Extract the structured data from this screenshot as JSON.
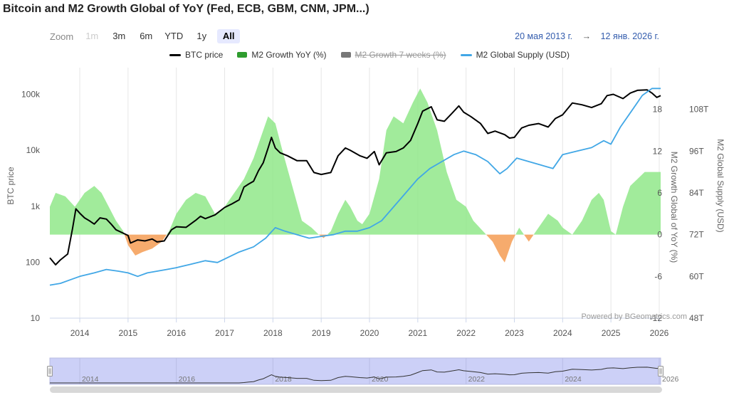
{
  "title": "Bitcoin and M2 Growth Global of YoY (Fed, ECB, GBM, CNM, JPM...)",
  "zoom": {
    "label": "Zoom",
    "buttons": [
      {
        "label": "1m",
        "state": "disabled"
      },
      {
        "label": "3m",
        "state": "normal"
      },
      {
        "label": "6m",
        "state": "normal"
      },
      {
        "label": "YTD",
        "state": "normal"
      },
      {
        "label": "1y",
        "state": "normal"
      },
      {
        "label": "All",
        "state": "active"
      }
    ]
  },
  "range": {
    "from": "20 мая 2013 г.",
    "arrow": "→",
    "to": "12 янв. 2026 г."
  },
  "legend": [
    {
      "name": "BTC price",
      "type": "line",
      "color": "#000000",
      "hidden": false
    },
    {
      "name": "M2 Growth YoY (%)",
      "type": "area",
      "color": "#2e9c2e",
      "hidden": false
    },
    {
      "name": "M2 Growth 7 weeks (%)",
      "type": "area",
      "color": "#777777",
      "hidden": true
    },
    {
      "name": "M2 Global Supply (USD)",
      "type": "line",
      "color": "#41a7e6",
      "hidden": false
    }
  ],
  "credit": "Powered by BGeometrics.com",
  "chart_data": {
    "type": "line",
    "x_axis": {
      "range": [
        2013.38,
        2026.03
      ],
      "ticks": [
        "2014",
        "2015",
        "2016",
        "2017",
        "2018",
        "2019",
        "2020",
        "2021",
        "2022",
        "2023",
        "2024",
        "2025",
        "2026"
      ]
    },
    "y_axes": [
      {
        "id": "btc",
        "label": "BTC price",
        "scale": "log",
        "range": [
          10,
          300000
        ],
        "ticks": [
          "10",
          "100",
          "1k",
          "10k",
          "100k"
        ]
      },
      {
        "id": "m2yoy",
        "label": "M2 Growth Global of YoY (%)",
        "range": [
          -12,
          24
        ],
        "ticks": [
          "-12",
          "-6",
          "0",
          "6",
          "12",
          "18"
        ]
      },
      {
        "id": "m2usd",
        "label": "M2 Global Supply (USD)",
        "range": [
          48,
          120
        ],
        "ticks": [
          "48T",
          "60T",
          "72T",
          "84T",
          "96T",
          "108T"
        ]
      }
    ],
    "series": [
      {
        "name": "BTC price",
        "axis": "btc",
        "color": "#000000",
        "points": [
          [
            2013.38,
            120
          ],
          [
            2013.5,
            90
          ],
          [
            2013.6,
            110
          ],
          [
            2013.75,
            140
          ],
          [
            2013.85,
            400
          ],
          [
            2013.92,
            900
          ],
          [
            2014.0,
            750
          ],
          [
            2014.1,
            620
          ],
          [
            2014.2,
            550
          ],
          [
            2014.3,
            480
          ],
          [
            2014.42,
            620
          ],
          [
            2014.55,
            590
          ],
          [
            2014.65,
            480
          ],
          [
            2014.75,
            380
          ],
          [
            2014.9,
            330
          ],
          [
            2015.0,
            300
          ],
          [
            2015.05,
            220
          ],
          [
            2015.2,
            250
          ],
          [
            2015.35,
            240
          ],
          [
            2015.5,
            260
          ],
          [
            2015.6,
            230
          ],
          [
            2015.75,
            240
          ],
          [
            2015.9,
            380
          ],
          [
            2016.0,
            430
          ],
          [
            2016.2,
            420
          ],
          [
            2016.4,
            560
          ],
          [
            2016.5,
            660
          ],
          [
            2016.6,
            600
          ],
          [
            2016.8,
            700
          ],
          [
            2017.0,
            950
          ],
          [
            2017.15,
            1100
          ],
          [
            2017.3,
            1300
          ],
          [
            2017.4,
            2200
          ],
          [
            2017.5,
            2500
          ],
          [
            2017.6,
            2800
          ],
          [
            2017.7,
            4300
          ],
          [
            2017.8,
            6000
          ],
          [
            2017.9,
            11000
          ],
          [
            2017.97,
            17000
          ],
          [
            2018.05,
            11000
          ],
          [
            2018.15,
            9000
          ],
          [
            2018.3,
            8000
          ],
          [
            2018.5,
            6500
          ],
          [
            2018.7,
            6500
          ],
          [
            2018.85,
            4000
          ],
          [
            2019.0,
            3700
          ],
          [
            2019.2,
            4000
          ],
          [
            2019.35,
            8000
          ],
          [
            2019.5,
            11000
          ],
          [
            2019.6,
            10000
          ],
          [
            2019.8,
            8000
          ],
          [
            2019.95,
            7200
          ],
          [
            2020.1,
            9500
          ],
          [
            2020.2,
            5500
          ],
          [
            2020.35,
            9000
          ],
          [
            2020.55,
            9500
          ],
          [
            2020.7,
            11000
          ],
          [
            2020.85,
            15000
          ],
          [
            2021.0,
            30000
          ],
          [
            2021.1,
            50000
          ],
          [
            2021.28,
            60000
          ],
          [
            2021.4,
            35000
          ],
          [
            2021.55,
            33000
          ],
          [
            2021.7,
            45000
          ],
          [
            2021.85,
            62000
          ],
          [
            2021.95,
            48000
          ],
          [
            2022.1,
            40000
          ],
          [
            2022.3,
            30000
          ],
          [
            2022.45,
            20000
          ],
          [
            2022.6,
            22000
          ],
          [
            2022.8,
            19000
          ],
          [
            2022.9,
            16500
          ],
          [
            2023.0,
            17000
          ],
          [
            2023.15,
            25000
          ],
          [
            2023.3,
            28000
          ],
          [
            2023.5,
            30000
          ],
          [
            2023.7,
            26000
          ],
          [
            2023.85,
            37000
          ],
          [
            2024.0,
            43000
          ],
          [
            2024.2,
            70000
          ],
          [
            2024.4,
            65000
          ],
          [
            2024.6,
            58000
          ],
          [
            2024.8,
            68000
          ],
          [
            2024.92,
            95000
          ],
          [
            2025.05,
            100000
          ],
          [
            2025.25,
            84000
          ],
          [
            2025.4,
            105000
          ],
          [
            2025.55,
            118000
          ],
          [
            2025.75,
            120000
          ],
          [
            2025.85,
            105000
          ],
          [
            2025.95,
            88000
          ],
          [
            2026.03,
            95000
          ]
        ]
      },
      {
        "name": "M2 Growth YoY (%)",
        "axis": "m2yoy",
        "color": "#2e9c2e",
        "points": [
          [
            2013.38,
            4
          ],
          [
            2013.5,
            6
          ],
          [
            2013.7,
            5.5
          ],
          [
            2013.9,
            4
          ],
          [
            2014.1,
            6
          ],
          [
            2014.3,
            7
          ],
          [
            2014.45,
            6
          ],
          [
            2014.6,
            4
          ],
          [
            2014.75,
            2
          ],
          [
            2014.9,
            0.5
          ],
          [
            2015.0,
            -1.5
          ],
          [
            2015.15,
            -3
          ],
          [
            2015.3,
            -2.5
          ],
          [
            2015.5,
            -2
          ],
          [
            2015.7,
            -1
          ],
          [
            2015.85,
            0.5
          ],
          [
            2016.0,
            3
          ],
          [
            2016.2,
            5
          ],
          [
            2016.4,
            6
          ],
          [
            2016.6,
            5.5
          ],
          [
            2016.8,
            3
          ],
          [
            2017.0,
            4
          ],
          [
            2017.2,
            6
          ],
          [
            2017.4,
            8
          ],
          [
            2017.6,
            11
          ],
          [
            2017.75,
            14
          ],
          [
            2017.9,
            17
          ],
          [
            2018.05,
            16
          ],
          [
            2018.2,
            12
          ],
          [
            2018.4,
            7
          ],
          [
            2018.6,
            2
          ],
          [
            2018.8,
            1
          ],
          [
            2018.95,
            0
          ],
          [
            2019.05,
            -0.5
          ],
          [
            2019.2,
            0.5
          ],
          [
            2019.35,
            3
          ],
          [
            2019.5,
            5
          ],
          [
            2019.6,
            4
          ],
          [
            2019.75,
            2
          ],
          [
            2019.85,
            1.5
          ],
          [
            2020.0,
            3
          ],
          [
            2020.2,
            8
          ],
          [
            2020.35,
            15
          ],
          [
            2020.5,
            17
          ],
          [
            2020.7,
            16
          ],
          [
            2020.9,
            19
          ],
          [
            2021.05,
            21
          ],
          [
            2021.2,
            19
          ],
          [
            2021.4,
            15
          ],
          [
            2021.6,
            9
          ],
          [
            2021.8,
            5
          ],
          [
            2022.0,
            4
          ],
          [
            2022.15,
            2
          ],
          [
            2022.35,
            0.5
          ],
          [
            2022.55,
            -1
          ],
          [
            2022.7,
            -3
          ],
          [
            2022.8,
            -4
          ],
          [
            2022.95,
            -1
          ],
          [
            2023.1,
            1
          ],
          [
            2023.3,
            -1
          ],
          [
            2023.5,
            1
          ],
          [
            2023.7,
            3
          ],
          [
            2023.9,
            2
          ],
          [
            2024.0,
            1
          ],
          [
            2024.2,
            0
          ],
          [
            2024.4,
            2
          ],
          [
            2024.6,
            5
          ],
          [
            2024.75,
            6
          ],
          [
            2024.85,
            5
          ],
          [
            2024.95,
            2
          ],
          [
            2025.0,
            0.5
          ],
          [
            2025.1,
            0
          ],
          [
            2025.25,
            4
          ],
          [
            2025.4,
            7
          ],
          [
            2025.55,
            8
          ],
          [
            2025.7,
            9
          ],
          [
            2025.85,
            9
          ],
          [
            2026.03,
            9
          ]
        ]
      },
      {
        "name": "M2 Global Supply (USD)",
        "axis": "m2usd",
        "color": "#41a7e6",
        "points": [
          [
            2013.38,
            57.5
          ],
          [
            2013.6,
            58
          ],
          [
            2013.8,
            59
          ],
          [
            2014.0,
            60
          ],
          [
            2014.3,
            61
          ],
          [
            2014.55,
            62
          ],
          [
            2014.8,
            61.5
          ],
          [
            2015.0,
            61
          ],
          [
            2015.2,
            60
          ],
          [
            2015.4,
            61
          ],
          [
            2015.6,
            61.5
          ],
          [
            2015.8,
            62
          ],
          [
            2016.0,
            62.5
          ],
          [
            2016.3,
            63.5
          ],
          [
            2016.6,
            64.5
          ],
          [
            2016.85,
            64
          ],
          [
            2017.0,
            65
          ],
          [
            2017.3,
            67
          ],
          [
            2017.6,
            68.5
          ],
          [
            2017.85,
            71
          ],
          [
            2018.05,
            74
          ],
          [
            2018.25,
            73
          ],
          [
            2018.5,
            72
          ],
          [
            2018.75,
            71
          ],
          [
            2019.0,
            71.5
          ],
          [
            2019.25,
            72
          ],
          [
            2019.5,
            73
          ],
          [
            2019.75,
            73
          ],
          [
            2020.0,
            74
          ],
          [
            2020.25,
            76
          ],
          [
            2020.5,
            80
          ],
          [
            2020.75,
            84
          ],
          [
            2021.0,
            88
          ],
          [
            2021.25,
            91
          ],
          [
            2021.5,
            93
          ],
          [
            2021.75,
            95
          ],
          [
            2021.95,
            96
          ],
          [
            2022.2,
            95
          ],
          [
            2022.45,
            93
          ],
          [
            2022.7,
            89.5
          ],
          [
            2022.85,
            91
          ],
          [
            2023.05,
            94
          ],
          [
            2023.3,
            93
          ],
          [
            2023.55,
            92
          ],
          [
            2023.8,
            91
          ],
          [
            2024.0,
            95
          ],
          [
            2024.3,
            96
          ],
          [
            2024.6,
            97
          ],
          [
            2024.85,
            99
          ],
          [
            2025.0,
            98
          ],
          [
            2025.2,
            103
          ],
          [
            2025.45,
            108
          ],
          [
            2025.65,
            112
          ],
          [
            2025.85,
            114
          ],
          [
            2026.03,
            114
          ]
        ]
      }
    ],
    "navigator": {
      "ticks": [
        "2014",
        "2016",
        "2018",
        "2020",
        "2022",
        "2024",
        "2026"
      ]
    },
    "grid": "vertical-lines"
  }
}
